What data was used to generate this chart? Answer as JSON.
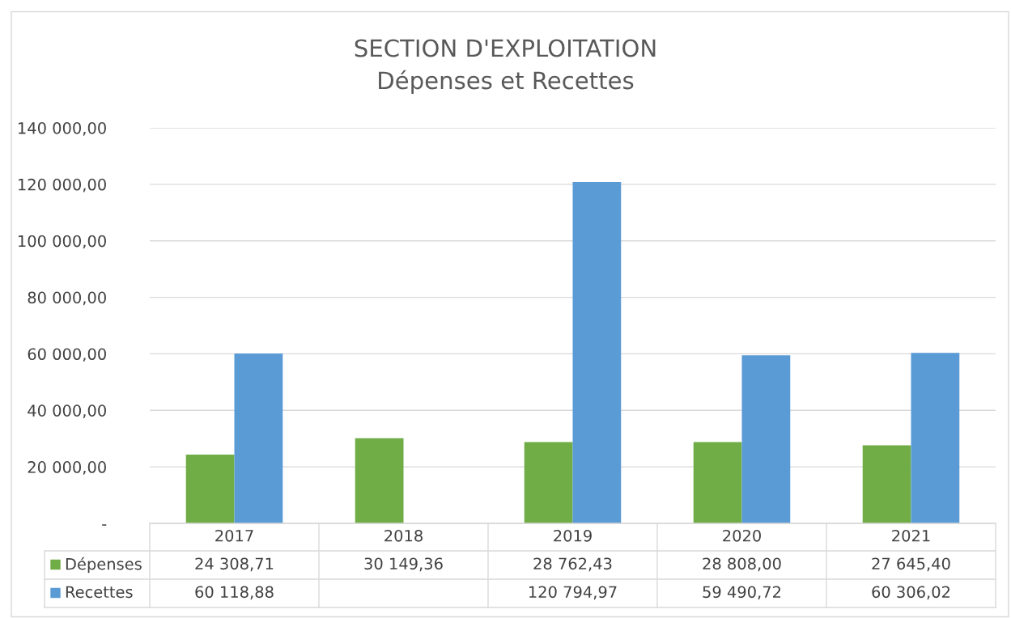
{
  "chart_data": {
    "type": "bar",
    "title": "SECTION D'EXPLOITATION\nDépenses et Recettes",
    "categories": [
      "2017",
      "2018",
      "2019",
      "2020",
      "2021"
    ],
    "series": [
      {
        "name": "Dépenses",
        "color": "#70ad47",
        "values": [
          24308.71,
          30149.36,
          28762.43,
          28808.0,
          27645.4
        ],
        "value_labels": [
          "24 308,71",
          "30 149,36",
          "28 762,43",
          "28 808,00",
          "27 645,40"
        ]
      },
      {
        "name": "Recettes",
        "color": "#5b9bd5",
        "values": [
          60118.88,
          null,
          120794.97,
          59490.72,
          60306.02
        ],
        "value_labels": [
          "60 118,88",
          null,
          "120 794,97",
          "59 490,72",
          "60 306,02"
        ]
      }
    ],
    "ylim": [
      0,
      140000
    ],
    "yticks": [
      {
        "value": 0,
        "label": "-"
      },
      {
        "value": 20000,
        "label": "20 000,00"
      },
      {
        "value": 40000,
        "label": "40 000,00"
      },
      {
        "value": 60000,
        "label": "60 000,00"
      },
      {
        "value": 80000,
        "label": "80 000,00"
      },
      {
        "value": 100000,
        "label": "100 000,00"
      },
      {
        "value": 120000,
        "label": "120 000,00"
      },
      {
        "value": 140000,
        "label": "140 000,00"
      }
    ],
    "grid": "y",
    "legend": "bottom"
  }
}
